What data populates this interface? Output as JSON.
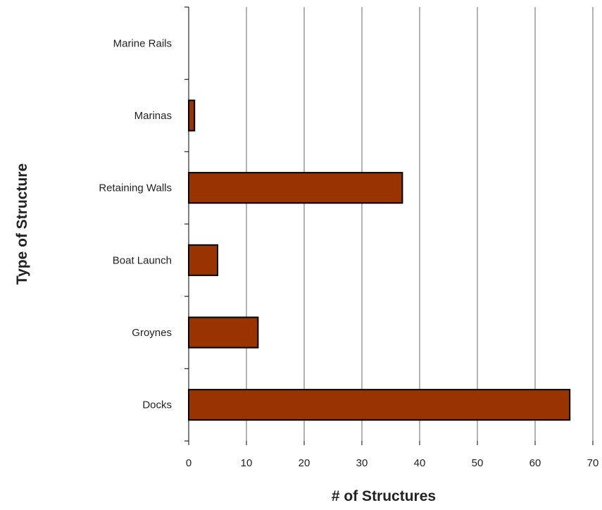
{
  "chart_data": {
    "type": "bar",
    "orientation": "horizontal",
    "title": "",
    "xlabel": "# of Structures",
    "ylabel": "Type of Structure",
    "categories": [
      "Marine Rails",
      "Marinas",
      "Retaining Walls",
      "Boat Launch",
      "Groynes",
      "Docks"
    ],
    "values": [
      0,
      1,
      37,
      5,
      12,
      66
    ],
    "xlim": [
      0,
      70
    ],
    "xticks": [
      0,
      10,
      20,
      30,
      40,
      50,
      60,
      70
    ],
    "grid": "vertical",
    "bar_color": "#993300",
    "legend": "none"
  }
}
